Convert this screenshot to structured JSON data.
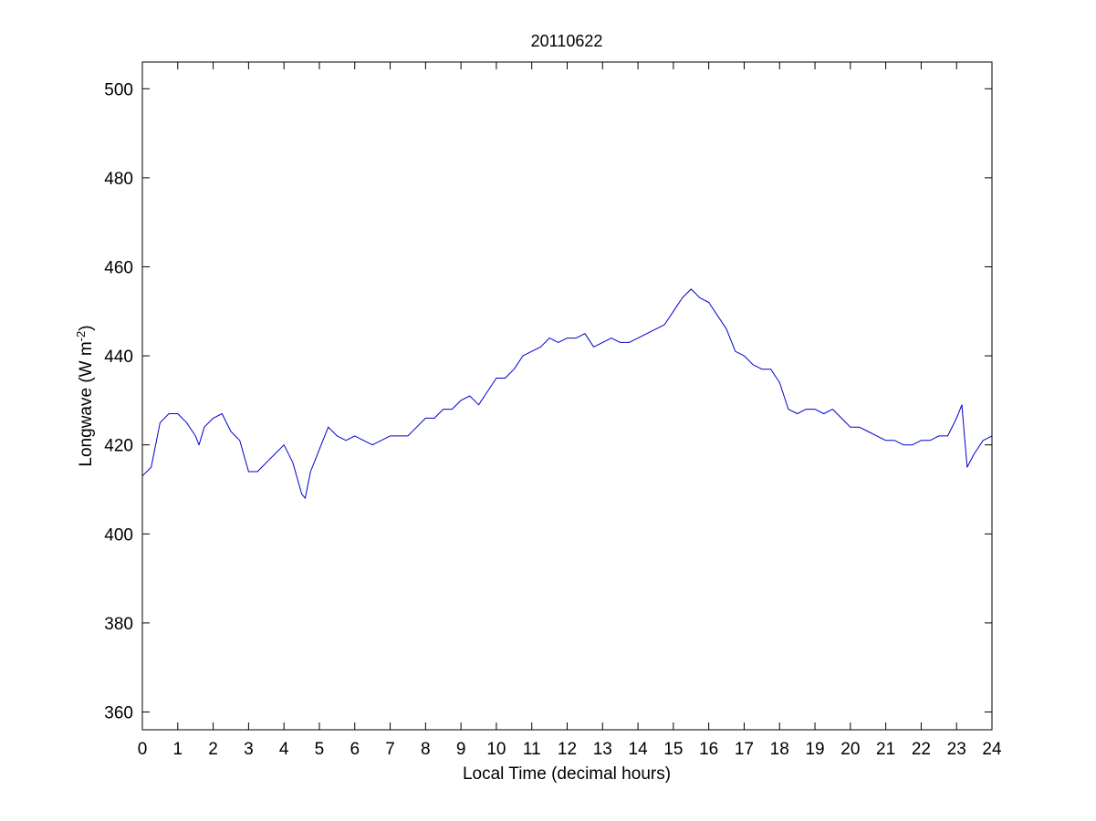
{
  "chart_data": {
    "type": "line",
    "title": "20110622",
    "xlabel": "Local Time (decimal hours)",
    "ylabel": "Longwave (W m",
    "ylabel_superscript": "-2",
    "ylabel_suffix": ")",
    "xlim": [
      0,
      24
    ],
    "ylim": [
      356,
      506
    ],
    "xticks": [
      0,
      1,
      2,
      3,
      4,
      5,
      6,
      7,
      8,
      9,
      10,
      11,
      12,
      13,
      14,
      15,
      16,
      17,
      18,
      19,
      20,
      21,
      22,
      23,
      24
    ],
    "yticks": [
      360,
      380,
      400,
      420,
      440,
      460,
      480,
      500
    ],
    "grid": false,
    "line_color": "#0000cc",
    "series": [
      {
        "x": [
          0,
          0.25,
          0.5,
          0.75,
          1.0,
          1.25,
          1.5,
          1.6,
          1.75,
          2.0,
          2.25,
          2.5,
          2.75,
          3.0,
          3.25,
          3.5,
          3.75,
          4.0,
          4.25,
          4.5,
          4.6,
          4.75,
          5.0,
          5.25,
          5.5,
          5.75,
          6.0,
          6.25,
          6.5,
          6.75,
          7.0,
          7.25,
          7.5,
          7.75,
          8.0,
          8.25,
          8.5,
          8.75,
          9.0,
          9.25,
          9.5,
          9.75,
          10.0,
          10.25,
          10.5,
          10.75,
          11.0,
          11.25,
          11.5,
          11.75,
          12.0,
          12.25,
          12.5,
          12.75,
          13.0,
          13.25,
          13.5,
          13.75,
          14.0,
          14.25,
          14.5,
          14.75,
          15.0,
          15.25,
          15.5,
          15.75,
          16.0,
          16.25,
          16.5,
          16.75,
          17.0,
          17.25,
          17.5,
          17.75,
          18.0,
          18.25,
          18.5,
          18.75,
          19.0,
          19.25,
          19.5,
          19.75,
          20.0,
          20.25,
          20.5,
          20.75,
          21.0,
          21.25,
          21.5,
          21.75,
          22.0,
          22.25,
          22.5,
          22.75,
          23.0,
          23.15,
          23.3,
          23.5,
          23.75,
          24.0
        ],
        "y": [
          413,
          415,
          425,
          427,
          427,
          425,
          422,
          420,
          424,
          426,
          427,
          423,
          421,
          414,
          414,
          416,
          418,
          420,
          416,
          409,
          408,
          414,
          419,
          424,
          422,
          421,
          422,
          421,
          420,
          421,
          422,
          422,
          422,
          424,
          426,
          426,
          428,
          428,
          430,
          431,
          429,
          432,
          435,
          435,
          437,
          440,
          441,
          442,
          444,
          443,
          444,
          444,
          445,
          442,
          443,
          444,
          443,
          443,
          444,
          445,
          446,
          447,
          450,
          453,
          455,
          453,
          452,
          449,
          446,
          441,
          440,
          438,
          437,
          437,
          434,
          428,
          427,
          428,
          428,
          427,
          428,
          426,
          424,
          424,
          423,
          422,
          421,
          421,
          420,
          420,
          421,
          421,
          422,
          422,
          426,
          429,
          415,
          418,
          421,
          422
        ]
      }
    ]
  }
}
